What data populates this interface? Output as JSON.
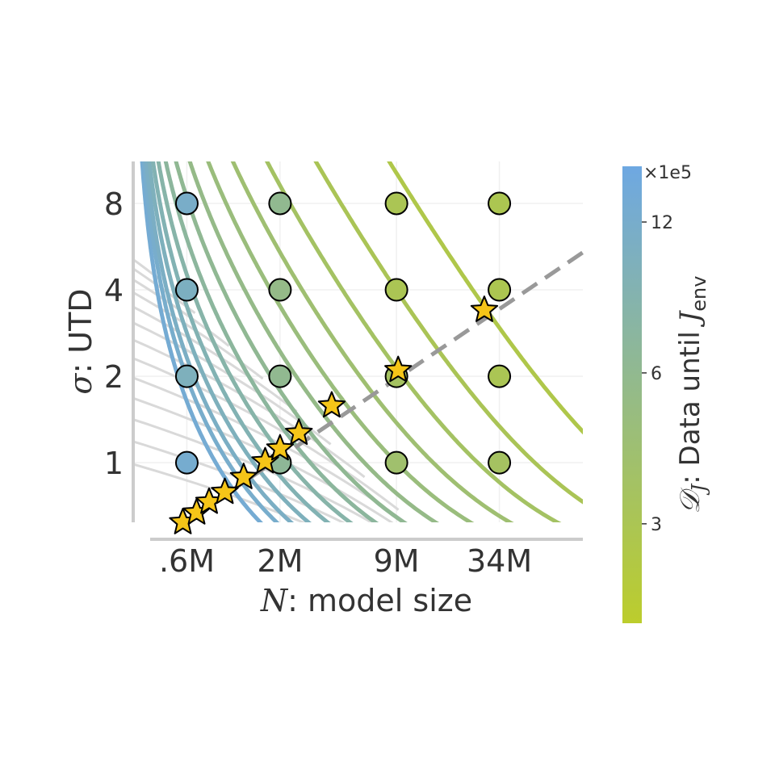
{
  "chart_data": {
    "type": "scatter",
    "xlabel_var": "N",
    "xlabel_rest": ": model size",
    "ylabel_var": "σ",
    "ylabel_rest": ": UTD",
    "x_scale": "log",
    "y_scale": "log",
    "x_ticks": [
      {
        "value": 600000,
        "label": ".6M"
      },
      {
        "value": 2000000,
        "label": "2M"
      },
      {
        "value": 9000000,
        "label": "9M"
      },
      {
        "value": 34000000,
        "label": "34M"
      }
    ],
    "y_ticks": [
      {
        "value": 1,
        "label": "1"
      },
      {
        "value": 2,
        "label": "2"
      },
      {
        "value": 4,
        "label": "4"
      },
      {
        "value": 8,
        "label": "8"
      }
    ],
    "xlim": [
      300000,
      100000000
    ],
    "ylim": [
      0.62,
      11.2
    ],
    "grid": true,
    "points": [
      {
        "N": 600000,
        "utd": 8,
        "data": 11.5
      },
      {
        "N": 600000,
        "utd": 4,
        "data": 10.5
      },
      {
        "N": 600000,
        "utd": 2,
        "data": 10.0
      },
      {
        "N": 600000,
        "utd": 1,
        "data": 12.5
      },
      {
        "N": 2000000,
        "utd": 8,
        "data": 6.0
      },
      {
        "N": 2000000,
        "utd": 4,
        "data": 5.5
      },
      {
        "N": 2000000,
        "utd": 2,
        "data": 6.0
      },
      {
        "N": 2000000,
        "utd": 1,
        "data": 6.5
      },
      {
        "N": 9000000,
        "utd": 8,
        "data": 3.0
      },
      {
        "N": 9000000,
        "utd": 4,
        "data": 3.0
      },
      {
        "N": 9000000,
        "utd": 2,
        "data": 3.5
      },
      {
        "N": 9000000,
        "utd": 1,
        "data": 4.0
      },
      {
        "N": 34000000,
        "utd": 8,
        "data": 2.9
      },
      {
        "N": 34000000,
        "utd": 4,
        "data": 2.9
      },
      {
        "N": 34000000,
        "utd": 2,
        "data": 3.0
      },
      {
        "N": 34000000,
        "utd": 1,
        "data": 3.5
      }
    ],
    "optimal_points": [
      {
        "N": 570000,
        "utd": 0.62
      },
      {
        "N": 680000,
        "utd": 0.67
      },
      {
        "N": 800000,
        "utd": 0.73
      },
      {
        "N": 980000,
        "utd": 0.79
      },
      {
        "N": 1250000,
        "utd": 0.89
      },
      {
        "N": 1650000,
        "utd": 1.01
      },
      {
        "N": 2000000,
        "utd": 1.12
      },
      {
        "N": 2550000,
        "utd": 1.27
      },
      {
        "N": 3900000,
        "utd": 1.58
      },
      {
        "N": 9200000,
        "utd": 2.1
      },
      {
        "N": 28000000,
        "utd": 3.4
      }
    ],
    "fit_line": {
      "N": [
        560000,
        100000000
      ],
      "utd": [
        0.61,
        5.4
      ]
    },
    "contours": [
      {
        "data": 13.0,
        "C": 400000,
        "N0": 300000,
        "U0": 0.3
      },
      {
        "data": 12.0,
        "C": 500000,
        "N0": 300000,
        "U0": 0.31
      },
      {
        "data": 11.0,
        "C": 600000,
        "N0": 300000,
        "U0": 0.32
      },
      {
        "data": 10.0,
        "C": 750000,
        "N0": 300000,
        "U0": 0.33
      },
      {
        "data": 9.0,
        "C": 950000,
        "N0": 300000,
        "U0": 0.34
      },
      {
        "data": 8.0,
        "C": 1250000,
        "N0": 300000,
        "U0": 0.35
      },
      {
        "data": 7.0,
        "C": 1700000,
        "N0": 300000,
        "U0": 0.36
      },
      {
        "data": 6.2,
        "C": 2400000,
        "N0": 300000,
        "U0": 0.37
      },
      {
        "data": 5.5,
        "C": 3500000,
        "N0": 300000,
        "U0": 0.38
      },
      {
        "data": 4.8,
        "C": 5300000,
        "N0": 300000,
        "U0": 0.39
      },
      {
        "data": 4.2,
        "C": 8500000,
        "N0": 300000,
        "U0": 0.4
      },
      {
        "data": 3.6,
        "C": 15000000,
        "N0": 300000,
        "U0": 0.41
      },
      {
        "data": 3.1,
        "C": 31000000,
        "N0": 300000,
        "U0": 0.42
      },
      {
        "data": 2.7,
        "C": 85000000,
        "N0": 300000,
        "U0": 0.43
      }
    ],
    "colorbar": {
      "label_var": "𝒟",
      "label_sub": "J",
      "label_mid": ": Data until ",
      "label_var2": "J",
      "label_sub2": "env",
      "multiplier": "×1e5",
      "range": [
        1.9,
        15.5
      ],
      "scale": "log",
      "ticks": [
        {
          "value": 12,
          "label": "12"
        },
        {
          "value": 6,
          "label": "6"
        },
        {
          "value": 3,
          "label": "3"
        }
      ]
    },
    "colors": {
      "low": "#bccd2c",
      "high": "#6ea8e2",
      "grid": "#f0f0f0",
      "axis": "#cccccc",
      "background_contour": "#d9d9d9",
      "star": "#f5c518",
      "fit_line": "#999999"
    }
  }
}
